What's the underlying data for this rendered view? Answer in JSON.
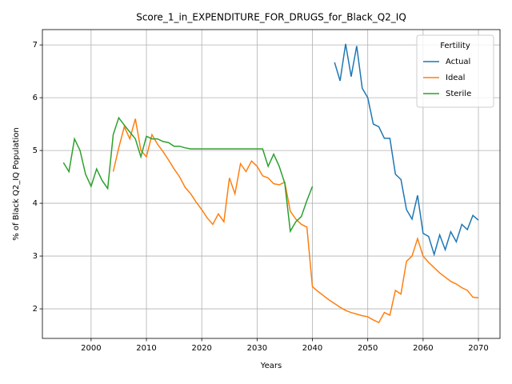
{
  "chart_data": {
    "type": "line",
    "title": "Score_1_in_EXPENDITURE_FOR_DRUGS_for_Black_Q2_IQ",
    "x_label": "Years",
    "y_label": "% of Black Q2_IQ Population",
    "legend_title": "Fertility",
    "legend": "upper right",
    "grid": true,
    "xlim": [
      1991.2,
      2073.9
    ],
    "ylim": [
      1.44,
      7.29
    ],
    "xticks": [
      2000,
      2010,
      2020,
      2030,
      2040,
      2050,
      2060,
      2070
    ],
    "yticks": [
      2,
      3,
      4,
      5,
      6,
      7
    ],
    "x": [
      1995,
      1996,
      1997,
      1998,
      1999,
      2000,
      2001,
      2002,
      2003,
      2004,
      2005,
      2006,
      2007,
      2008,
      2009,
      2010,
      2011,
      2012,
      2013,
      2014,
      2015,
      2016,
      2017,
      2018,
      2019,
      2020,
      2021,
      2022,
      2023,
      2024,
      2025,
      2026,
      2027,
      2028,
      2029,
      2030,
      2031,
      2032,
      2033,
      2034,
      2035,
      2036,
      2037,
      2038,
      2039,
      2040,
      2041,
      2042,
      2043,
      2044,
      2045,
      2046,
      2047,
      2048,
      2049,
      2050,
      2051,
      2052,
      2053,
      2054,
      2055,
      2056,
      2057,
      2058,
      2059,
      2060,
      2061,
      2062,
      2063,
      2064,
      2065,
      2066,
      2067,
      2068,
      2069,
      2070
    ],
    "series": [
      {
        "name": "Actual",
        "color": "#1f77b4",
        "values": [
          null,
          null,
          null,
          null,
          null,
          null,
          null,
          null,
          null,
          null,
          null,
          null,
          null,
          null,
          null,
          null,
          null,
          null,
          null,
          null,
          null,
          null,
          null,
          null,
          null,
          null,
          null,
          null,
          null,
          null,
          null,
          null,
          null,
          null,
          null,
          null,
          null,
          null,
          null,
          null,
          null,
          null,
          null,
          null,
          null,
          null,
          null,
          null,
          null,
          6.67,
          6.32,
          7.02,
          6.4,
          6.98,
          6.18,
          6.0,
          5.5,
          5.45,
          5.23,
          5.23,
          4.55,
          4.45,
          3.88,
          3.7,
          4.15,
          3.43,
          3.37,
          3.03,
          3.4,
          3.12,
          3.46,
          3.27,
          3.6,
          3.5,
          3.77,
          3.68
        ]
      },
      {
        "name": "Ideal",
        "color": "#ff7f0e",
        "values": [
          null,
          null,
          null,
          null,
          null,
          null,
          null,
          null,
          null,
          4.6,
          5.05,
          5.45,
          5.22,
          5.6,
          5.0,
          4.88,
          5.3,
          5.12,
          4.98,
          4.82,
          4.65,
          4.5,
          4.3,
          4.18,
          4.02,
          3.88,
          3.72,
          3.6,
          3.8,
          3.65,
          4.48,
          4.18,
          4.75,
          4.6,
          4.8,
          4.7,
          4.52,
          4.48,
          4.37,
          4.35,
          4.4,
          3.85,
          3.7,
          3.6,
          3.55,
          2.42,
          2.33,
          2.25,
          2.17,
          2.1,
          2.03,
          1.97,
          1.93,
          1.9,
          1.87,
          1.85,
          1.79,
          1.74,
          1.93,
          1.88,
          2.35,
          2.28,
          2.9,
          3.0,
          3.33,
          3.0,
          2.88,
          2.78,
          2.68,
          2.6,
          2.52,
          2.47,
          2.4,
          2.35,
          2.22,
          2.21
        ]
      },
      {
        "name": "Sterile",
        "color": "#2ca02c",
        "values": [
          4.77,
          4.6,
          5.22,
          5.0,
          4.55,
          4.32,
          4.65,
          4.43,
          4.28,
          5.3,
          5.62,
          5.48,
          5.35,
          5.22,
          4.88,
          5.27,
          5.22,
          5.22,
          5.17,
          5.15,
          5.08,
          5.08,
          5.05,
          5.03,
          5.03,
          5.03,
          5.03,
          5.03,
          5.03,
          5.03,
          5.03,
          5.03,
          5.03,
          5.03,
          5.03,
          5.03,
          5.03,
          4.7,
          4.93,
          4.7,
          4.38,
          3.47,
          3.65,
          3.75,
          4.05,
          4.32,
          null,
          null,
          null,
          null,
          null,
          null,
          null,
          null,
          null,
          null,
          null,
          null,
          null,
          null,
          null,
          null,
          null,
          null,
          null,
          null,
          null,
          null,
          null,
          null,
          null,
          null,
          null,
          null,
          null,
          null
        ]
      }
    ]
  }
}
